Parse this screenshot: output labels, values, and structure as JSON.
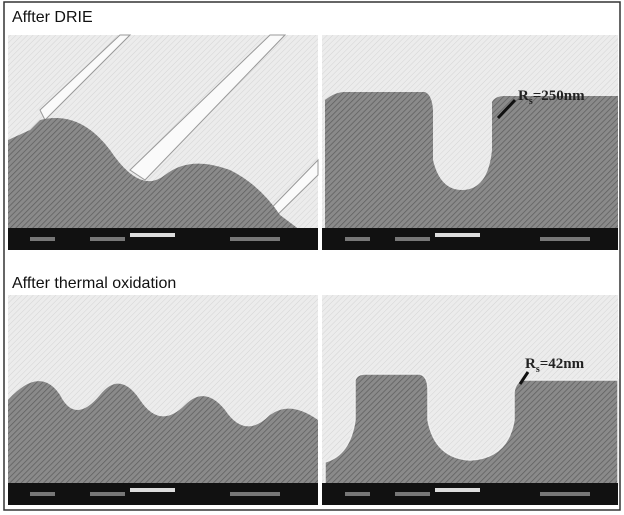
{
  "sections": [
    {
      "title": "Affter DRIE",
      "annotation": {
        "symbol": "R",
        "subscript": "s",
        "text": "=250nm"
      }
    },
    {
      "title": "Affter thermal oxidation",
      "annotation": {
        "symbol": "R",
        "subscript": "s",
        "text": "=42nm"
      }
    }
  ]
}
